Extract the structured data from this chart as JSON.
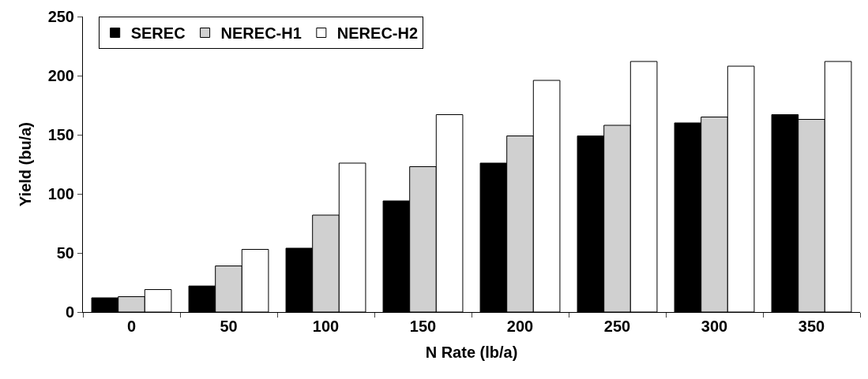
{
  "chart_data": {
    "type": "bar",
    "xlabel": "N Rate (lb/a)",
    "ylabel": "Yield (bu/a)",
    "categories": [
      "0",
      "50",
      "100",
      "150",
      "200",
      "250",
      "300",
      "350"
    ],
    "series": [
      {
        "name": "SEREC",
        "color": "#000000",
        "values": [
          12,
          22,
          54,
          94,
          126,
          149,
          160,
          167
        ]
      },
      {
        "name": "NEREC-H1",
        "color": "#d0d0d0",
        "values": [
          13,
          39,
          82,
          123,
          149,
          158,
          165,
          163
        ]
      },
      {
        "name": "NEREC-H2",
        "color": "#ffffff",
        "values": [
          19,
          53,
          126,
          167,
          196,
          212,
          208,
          212
        ]
      }
    ],
    "ylim": [
      0,
      250
    ],
    "yticks": [
      0,
      50,
      100,
      150,
      200,
      250
    ],
    "legend": "top left"
  }
}
